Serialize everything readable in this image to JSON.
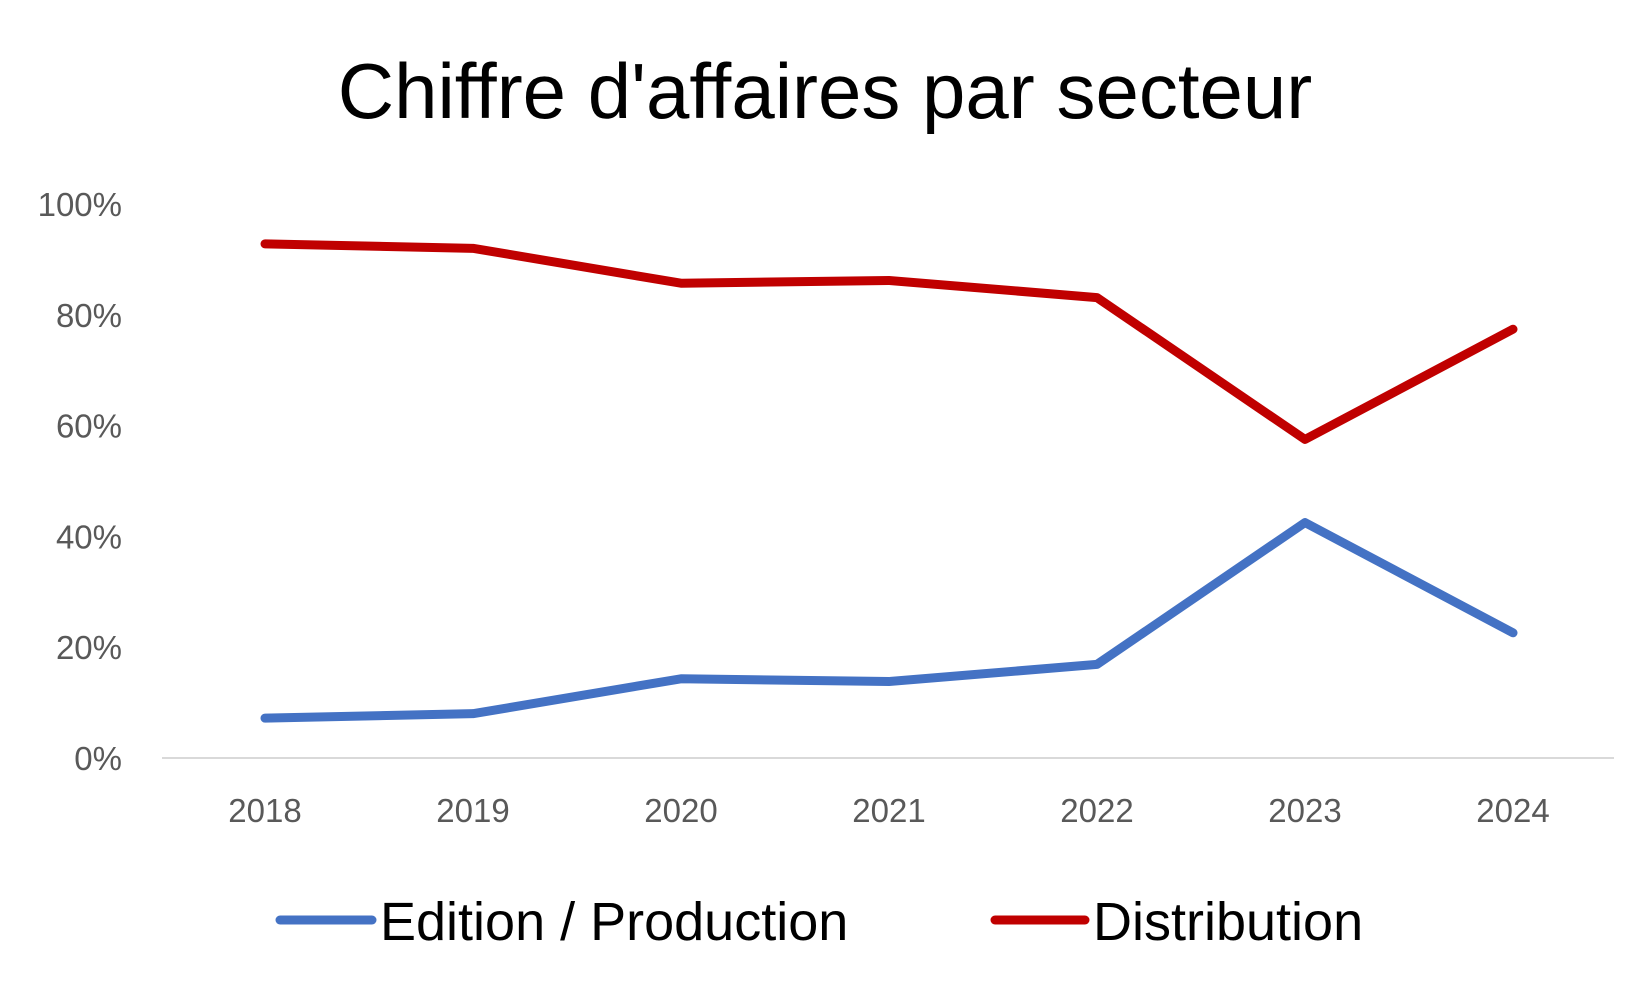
{
  "chart_data": {
    "type": "line",
    "title": "Chiffre d'affaires par secteur",
    "xlabel": "",
    "ylabel": "",
    "categories": [
      "2018",
      "2019",
      "2020",
      "2021",
      "2022",
      "2023",
      "2024"
    ],
    "ylim": [
      0,
      100
    ],
    "y_ticks": [
      "0%",
      "20%",
      "40%",
      "60%",
      "80%",
      "100%"
    ],
    "y_tick_values": [
      0,
      20,
      40,
      60,
      80,
      100
    ],
    "grid": false,
    "legend_position": "bottom",
    "series": [
      {
        "name": "Edition / Production",
        "color": "#4472C4",
        "values": [
          7.2,
          8.0,
          14.3,
          13.8,
          16.9,
          42.5,
          22.6
        ]
      },
      {
        "name": "Distribution",
        "color": "#C00000",
        "values": [
          92.8,
          92.0,
          85.7,
          86.2,
          83.1,
          57.5,
          77.4
        ]
      }
    ]
  }
}
